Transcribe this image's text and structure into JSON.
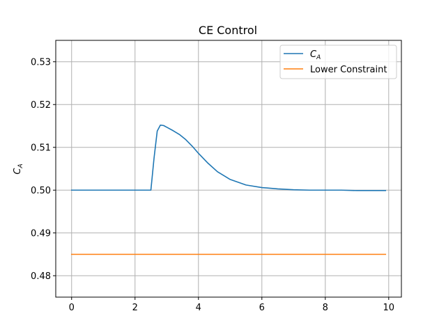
{
  "chart_data": {
    "type": "line",
    "title": "CE Control",
    "xlabel": "",
    "ylabel_main": "C",
    "ylabel_sub": "A",
    "xlim": [
      -0.5,
      10.4
    ],
    "ylim": [
      0.475,
      0.535
    ],
    "xticks": [
      0,
      2,
      4,
      6,
      8,
      10
    ],
    "yticks": [
      0.48,
      0.49,
      0.5,
      0.51,
      0.52,
      0.53
    ],
    "xtick_labels": [
      "0",
      "2",
      "4",
      "6",
      "8",
      "10"
    ],
    "ytick_labels": [
      "0.48",
      "0.49",
      "0.50",
      "0.51",
      "0.52",
      "0.53"
    ],
    "grid": true,
    "legend_position": "top-right",
    "series": [
      {
        "name_main": "C",
        "name_sub": "A",
        "color": "#1f77b4",
        "x": [
          0,
          0.5,
          1.0,
          1.5,
          2.0,
          2.5,
          2.6,
          2.7,
          2.8,
          2.9,
          3.0,
          3.2,
          3.4,
          3.6,
          3.8,
          4.0,
          4.3,
          4.6,
          5.0,
          5.5,
          6.0,
          6.5,
          7.0,
          7.5,
          8.0,
          8.5,
          9.0,
          9.5,
          9.9
        ],
        "y": [
          0.5,
          0.5,
          0.5,
          0.5,
          0.5,
          0.5,
          0.5075,
          0.5138,
          0.5152,
          0.5151,
          0.5147,
          0.5139,
          0.513,
          0.5118,
          0.5103,
          0.5086,
          0.5063,
          0.5043,
          0.5025,
          0.5012,
          0.5006,
          0.5003,
          0.5001,
          0.5,
          0.5,
          0.5,
          0.4999,
          0.4999,
          0.4999
        ]
      },
      {
        "name": "Lower Constraint",
        "color": "#ff7f0e",
        "x": [
          0,
          9.9
        ],
        "y": [
          0.485,
          0.485
        ]
      }
    ]
  }
}
